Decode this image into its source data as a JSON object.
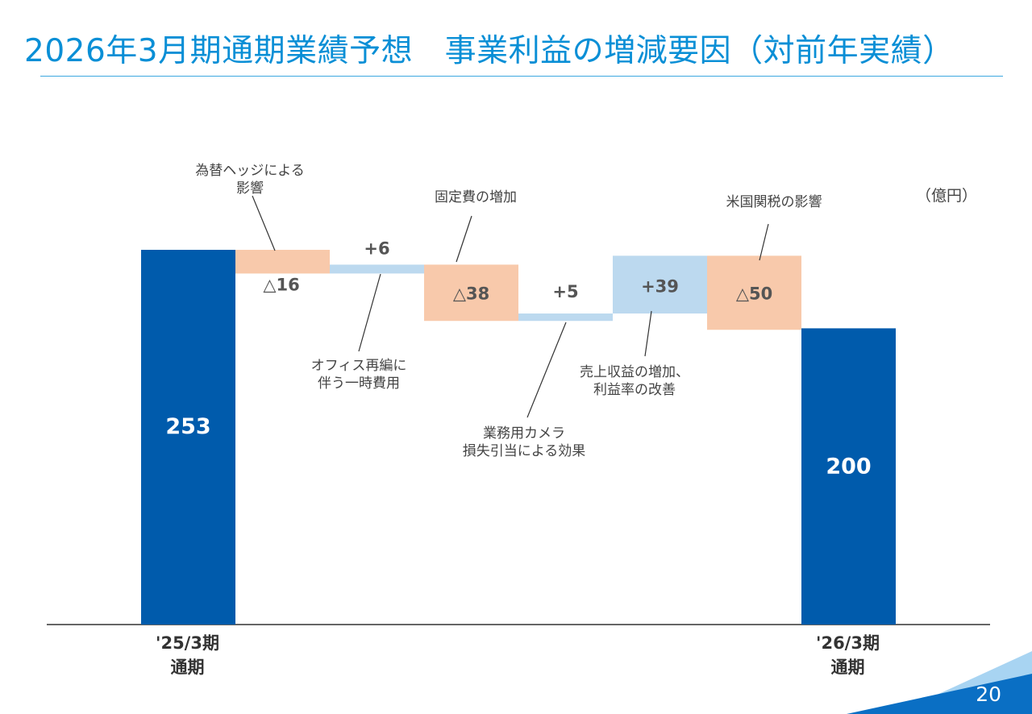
{
  "page": {
    "title": "2026年3月期通期業績予想　事業利益の増減要因（対前年実績）",
    "unit": "（億円）",
    "page_number": "20"
  },
  "colors": {
    "title": "#0a8fd6",
    "total_bar": "#005bac",
    "decrease_bar": "#f8c9ab",
    "increase_bar": "#bcd9ef",
    "value_on_total": "#ffffff",
    "value_on_change": "#555555"
  },
  "chart_data": {
    "type": "waterfall",
    "unit": "億円",
    "ylim": [
      0,
      280
    ],
    "steps": [
      {
        "kind": "total",
        "label": "'25/3期\n通期",
        "value": 253,
        "display": "253"
      },
      {
        "kind": "decrease",
        "label": "為替ヘッジによる\n影響",
        "value": -16,
        "display": "△16"
      },
      {
        "kind": "increase",
        "label": "オフィス再編に\n伴う一時費用",
        "value": 6,
        "display": "+6"
      },
      {
        "kind": "decrease",
        "label": "固定費の増加",
        "value": -38,
        "display": "△38"
      },
      {
        "kind": "increase",
        "label": "業務用カメラ\n損失引当による効果",
        "value": 5,
        "display": "+5"
      },
      {
        "kind": "increase",
        "label": "売上収益の増加、\n利益率の改善",
        "value": 39,
        "display": "+39"
      },
      {
        "kind": "decrease",
        "label": "米国関税の影響",
        "value": -50,
        "display": "△50"
      },
      {
        "kind": "total",
        "label": "'26/3期\n通期",
        "value": 200,
        "display": "200"
      }
    ]
  }
}
